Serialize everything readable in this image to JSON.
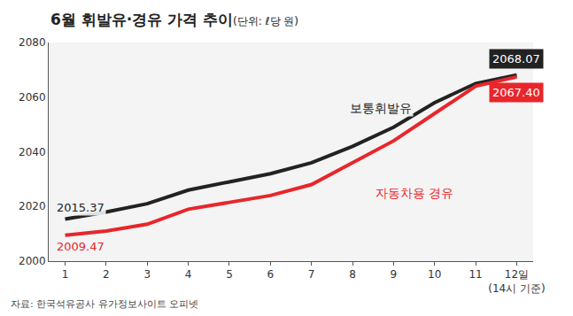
{
  "chart_data": {
    "type": "line",
    "title": "6월 휘발유·경유 가격 추이",
    "subtitle": "(단위: ℓ당 원)",
    "source": "자료: 한국석유공사 유가정보사이트 오피넷",
    "categories": [
      "1",
      "2",
      "3",
      "4",
      "5",
      "6",
      "7",
      "8",
      "9",
      "10",
      "11",
      "12일\n(14시 기준)"
    ],
    "series": [
      {
        "name": "보통휘발유",
        "color": "#222222",
        "values": [
          2015.37,
          2018,
          2021,
          2026,
          2029,
          2032,
          2036,
          2042,
          2049,
          2058,
          2065,
          2068.07
        ],
        "value_labels": [
          "2015.37",
          null,
          null,
          null,
          null,
          null,
          null,
          null,
          null,
          null,
          null,
          "2068.07"
        ]
      },
      {
        "name": "자동차용 경유",
        "color": "#e8262b",
        "values": [
          2009.47,
          2011,
          2013.5,
          2019,
          2021.5,
          2024,
          2028,
          2036,
          2044,
          2054,
          2064,
          2067.4
        ],
        "value_labels": [
          "2009.47",
          null,
          null,
          null,
          null,
          null,
          null,
          null,
          null,
          null,
          null,
          "2067.40"
        ]
      }
    ],
    "ylim": [
      2000,
      2080
    ],
    "yticks": [
      2000,
      2020,
      2040,
      2060,
      2080
    ],
    "grid": false,
    "marker": "none",
    "line_style": "solid"
  }
}
